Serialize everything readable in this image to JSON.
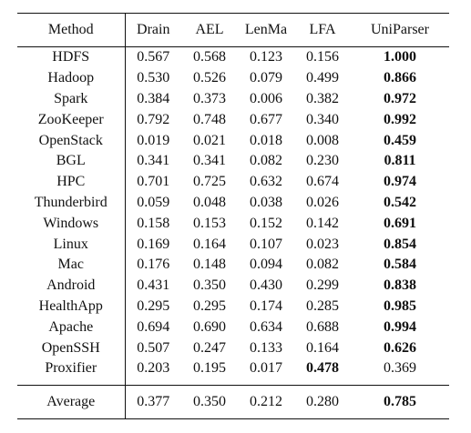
{
  "table": {
    "headers": [
      "Method",
      "Drain",
      "AEL",
      "LenMa",
      "LFA",
      "UniParser"
    ],
    "rows": [
      {
        "method": "HDFS",
        "values": [
          "0.567",
          "0.568",
          "0.123",
          "0.156",
          "1.000"
        ],
        "bold": [
          false,
          false,
          false,
          false,
          true
        ]
      },
      {
        "method": "Hadoop",
        "values": [
          "0.530",
          "0.526",
          "0.079",
          "0.499",
          "0.866"
        ],
        "bold": [
          false,
          false,
          false,
          false,
          true
        ]
      },
      {
        "method": "Spark",
        "values": [
          "0.384",
          "0.373",
          "0.006",
          "0.382",
          "0.972"
        ],
        "bold": [
          false,
          false,
          false,
          false,
          true
        ]
      },
      {
        "method": "ZooKeeper",
        "values": [
          "0.792",
          "0.748",
          "0.677",
          "0.340",
          "0.992"
        ],
        "bold": [
          false,
          false,
          false,
          false,
          true
        ]
      },
      {
        "method": "OpenStack",
        "values": [
          "0.019",
          "0.021",
          "0.018",
          "0.008",
          "0.459"
        ],
        "bold": [
          false,
          false,
          false,
          false,
          true
        ]
      },
      {
        "method": "BGL",
        "values": [
          "0.341",
          "0.341",
          "0.082",
          "0.230",
          "0.811"
        ],
        "bold": [
          false,
          false,
          false,
          false,
          true
        ]
      },
      {
        "method": "HPC",
        "values": [
          "0.701",
          "0.725",
          "0.632",
          "0.674",
          "0.974"
        ],
        "bold": [
          false,
          false,
          false,
          false,
          true
        ]
      },
      {
        "method": "Thunderbird",
        "values": [
          "0.059",
          "0.048",
          "0.038",
          "0.026",
          "0.542"
        ],
        "bold": [
          false,
          false,
          false,
          false,
          true
        ]
      },
      {
        "method": "Windows",
        "values": [
          "0.158",
          "0.153",
          "0.152",
          "0.142",
          "0.691"
        ],
        "bold": [
          false,
          false,
          false,
          false,
          true
        ]
      },
      {
        "method": "Linux",
        "values": [
          "0.169",
          "0.164",
          "0.107",
          "0.023",
          "0.854"
        ],
        "bold": [
          false,
          false,
          false,
          false,
          true
        ]
      },
      {
        "method": "Mac",
        "values": [
          "0.176",
          "0.148",
          "0.094",
          "0.082",
          "0.584"
        ],
        "bold": [
          false,
          false,
          false,
          false,
          true
        ]
      },
      {
        "method": "Android",
        "values": [
          "0.431",
          "0.350",
          "0.430",
          "0.299",
          "0.838"
        ],
        "bold": [
          false,
          false,
          false,
          false,
          true
        ]
      },
      {
        "method": "HealthApp",
        "values": [
          "0.295",
          "0.295",
          "0.174",
          "0.285",
          "0.985"
        ],
        "bold": [
          false,
          false,
          false,
          false,
          true
        ]
      },
      {
        "method": "Apache",
        "values": [
          "0.694",
          "0.690",
          "0.634",
          "0.688",
          "0.994"
        ],
        "bold": [
          false,
          false,
          false,
          false,
          true
        ]
      },
      {
        "method": "OpenSSH",
        "values": [
          "0.507",
          "0.247",
          "0.133",
          "0.164",
          "0.626"
        ],
        "bold": [
          false,
          false,
          false,
          false,
          true
        ]
      },
      {
        "method": "Proxifier",
        "values": [
          "0.203",
          "0.195",
          "0.017",
          "0.478",
          "0.369"
        ],
        "bold": [
          false,
          false,
          false,
          true,
          false
        ]
      }
    ],
    "average": {
      "method": "Average",
      "values": [
        "0.377",
        "0.350",
        "0.212",
        "0.280",
        "0.785"
      ],
      "bold": [
        false,
        false,
        false,
        false,
        true
      ]
    }
  }
}
